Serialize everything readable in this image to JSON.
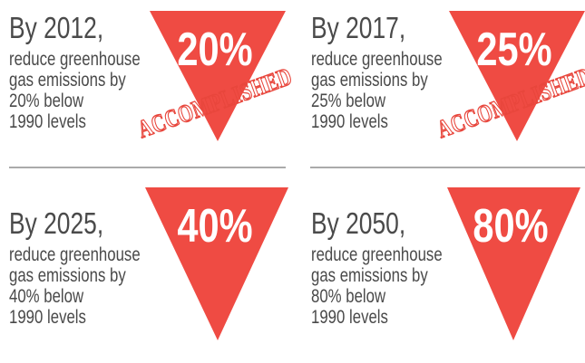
{
  "items": [
    {
      "heading": "By 2012,",
      "lines": [
        "reduce greenhouse",
        "gas emissions by",
        "20% below",
        "1990 levels"
      ],
      "badge": "20%",
      "stamp": "ACCOMPLISHED"
    },
    {
      "heading": "By 2017,",
      "lines": [
        "reduce greenhouse",
        "gas emissions by",
        "25% below",
        "1990 levels"
      ],
      "badge": "25%",
      "stamp": "ACCOMPLISHED"
    },
    {
      "heading": "By 2025,",
      "lines": [
        "reduce greenhouse",
        "gas emissions by",
        "40% below",
        "1990 levels"
      ],
      "badge": "40%"
    },
    {
      "heading": "By 2050,",
      "lines": [
        "reduce greenhouse",
        "gas emissions by",
        "80% below",
        "1990 levels"
      ],
      "badge": "80%"
    }
  ]
}
